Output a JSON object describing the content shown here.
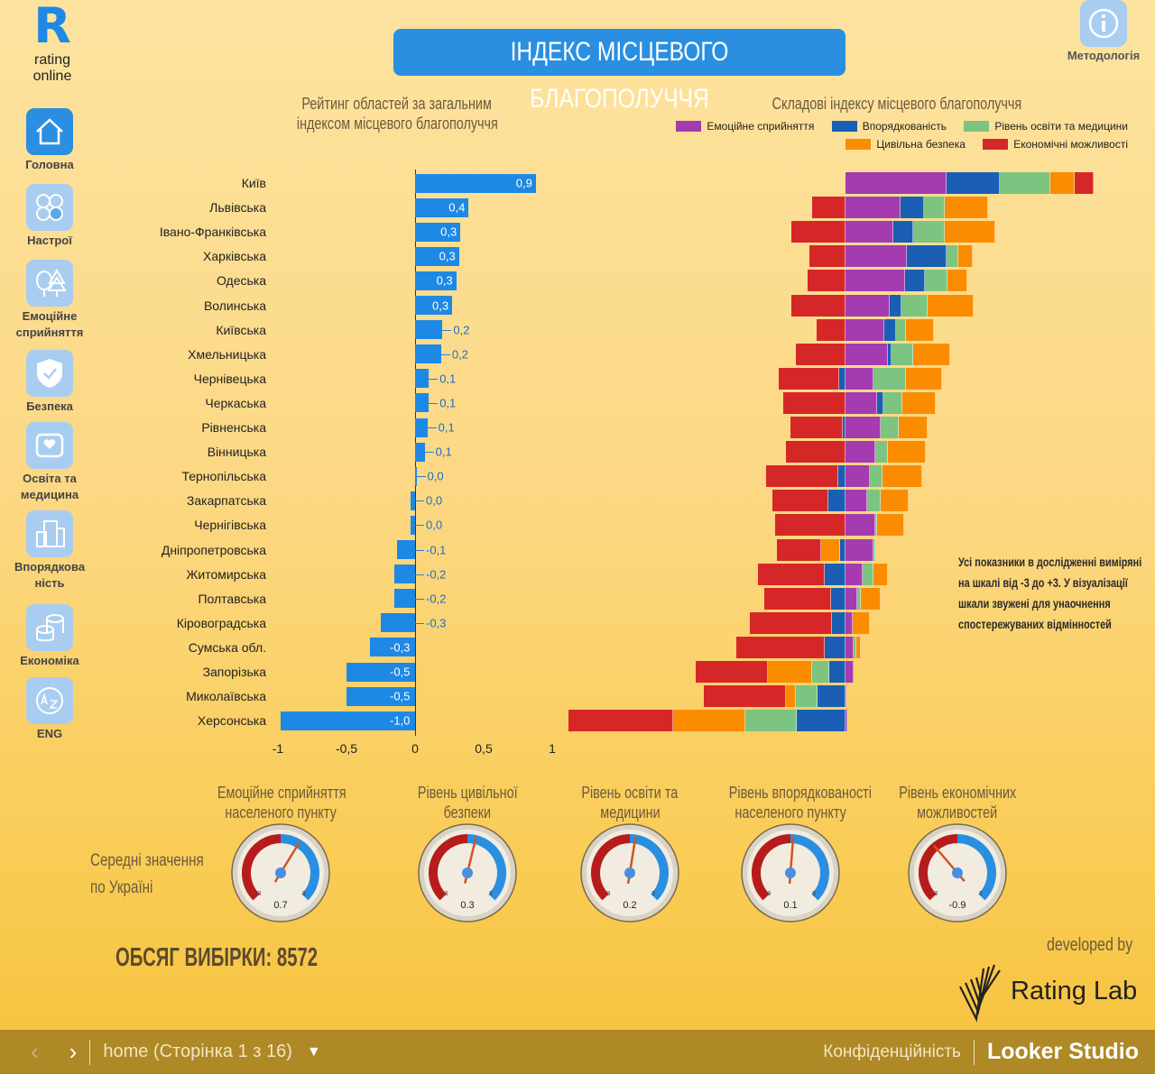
{
  "logo": {
    "mark": "R",
    "line1": "rating",
    "line2": "online"
  },
  "header": {
    "title": "ІНДЕКС МІСЦЕВОГО БЛАГОПОЛУЧЧЯ",
    "methodology_label": "Методологія"
  },
  "sidebar": {
    "items": [
      {
        "label": "Головна",
        "icon": "home-icon",
        "active": true
      },
      {
        "label": "Настрої",
        "icon": "moods-icon"
      },
      {
        "label": "Емоційне сприйняття",
        "icon": "trees-icon"
      },
      {
        "label": "Безпека",
        "icon": "shield-icon"
      },
      {
        "label": "Освіта та медицина",
        "icon": "heart-card-icon"
      },
      {
        "label": "Впорядкова ність",
        "icon": "buildings-icon"
      },
      {
        "label": "Економіка",
        "icon": "coins-icon"
      },
      {
        "label": "ENG",
        "icon": "translate-icon"
      }
    ]
  },
  "note": "Усі показники в дослідженні виміряні на шкалі від -3 до +3. У візуалізації шкали звужені для унаочнення спостережуваних відмінностей",
  "averages_label_1": "Середні значення",
  "averages_label_2": "по Україні",
  "sample": "ОБСЯГ ВИБІРКИ: 8572",
  "developed_by": "developed by",
  "developer": "Rating Lab",
  "footer": {
    "page": "home (Сторінка 1 з 16)",
    "privacy": "Конфіденційність",
    "brand": "Looker Studio"
  },
  "colors": {
    "bar": "#1e88e5",
    "emotional": "#a43bb0",
    "order": "#1a5fb4",
    "education": "#7cc47f",
    "safety": "#fb8c00",
    "economic": "#d62728"
  },
  "chart_data": [
    {
      "type": "bar",
      "title": "Рейтинг областей за загальним індексом місцевого благополуччя",
      "title_line1": "Рейтинг областей за загальним",
      "title_line2": "індексом місцевого благополуччя",
      "orientation": "horizontal",
      "categories": [
        "Київ",
        "Львівська",
        "Івано-Франківська",
        "Харківська",
        "Одеська",
        "Волинська",
        "Київська",
        "Хмельницька",
        "Чернівецька",
        "Черкаська",
        "Рівненська",
        "Вінницька",
        "Тернопільська",
        "Закарпатська",
        "Чернігівська",
        "Дніпропетровська",
        "Житомирська",
        "Полтавська",
        "Кіровоградська",
        "Сумська обл.",
        "Запорізька",
        "Миколаївська",
        "Херсонська"
      ],
      "values": [
        0.88,
        0.39,
        0.33,
        0.32,
        0.3,
        0.27,
        0.2,
        0.19,
        0.1,
        0.1,
        0.09,
        0.07,
        0.01,
        -0.03,
        -0.03,
        -0.13,
        -0.15,
        -0.15,
        -0.25,
        -0.33,
        -0.5,
        -0.5,
        -0.98
      ],
      "labels": [
        "0,9",
        "0,4",
        "0,3",
        "0,3",
        "0,3",
        "0,3",
        "0,2",
        "0,2",
        "0,1",
        "0,1",
        "0,1",
        "0,1",
        "0,0",
        "0,0",
        "0,0",
        "-0,1",
        "-0,2",
        "-0,2",
        "-0,3",
        "-0,3",
        "-0,5",
        "-0,5",
        "-1,0"
      ],
      "xlim": [
        -1,
        1
      ],
      "xticks": [
        "-1",
        "-0,5",
        "0",
        "0,5",
        "1"
      ],
      "xtick_values": [
        -1,
        -0.5,
        0,
        0.5,
        1
      ]
    },
    {
      "type": "bar",
      "stacked": true,
      "orientation": "horizontal",
      "title": "Складові індексу місцевого благополуччя",
      "legend_position": "top",
      "categories": [
        "Київ",
        "Львівська",
        "Івано-Франківська",
        "Харківська",
        "Одеська",
        "Волинська",
        "Київська",
        "Хмельницька",
        "Чернівецька",
        "Черкаська",
        "Рівненська",
        "Вінницька",
        "Тернопільська",
        "Закарпатська",
        "Чернігівська",
        "Дніпропетровська",
        "Житомирська",
        "Полтавська",
        "Кіровоградська",
        "Сумська обл.",
        "Запорізька",
        "Миколаївська",
        "Херсонська"
      ],
      "series": [
        {
          "name": "Емоційне сприйняття",
          "key": "emotional",
          "values": [
            1.12,
            0.61,
            0.53,
            0.68,
            0.66,
            0.49,
            0.43,
            0.47,
            0.31,
            0.35,
            0.39,
            0.33,
            0.27,
            0.24,
            0.33,
            0.31,
            0.19,
            0.13,
            0.08,
            0.09,
            0.09,
            0.01,
            0.02
          ]
        },
        {
          "name": "Впорядкованість",
          "key": "order",
          "values": [
            0.59,
            0.26,
            0.22,
            0.44,
            0.22,
            0.13,
            0.13,
            0.04,
            -0.07,
            0.07,
            -0.03,
            0,
            -0.08,
            -0.19,
            0,
            -0.06,
            -0.23,
            -0.16,
            -0.15,
            -0.23,
            -0.18,
            -0.31,
            -0.54
          ]
        },
        {
          "name": "Рівень освіти та медицини",
          "key": "education",
          "values": [
            0.56,
            0.23,
            0.35,
            0.13,
            0.25,
            0.29,
            0.11,
            0.24,
            0.36,
            0.21,
            0.2,
            0.14,
            0.14,
            0.15,
            0.02,
            0.02,
            0.12,
            0.04,
            0,
            0.03,
            -0.19,
            -0.24,
            -0.57
          ]
        },
        {
          "name": "Цивільна безпека",
          "key": "safety",
          "values": [
            0.27,
            0.48,
            0.56,
            0.16,
            0.22,
            0.51,
            0.31,
            0.41,
            0.4,
            0.37,
            0.32,
            0.42,
            0.44,
            0.31,
            0.3,
            -0.21,
            0.16,
            0.22,
            0.19,
            0.05,
            -0.49,
            -0.11,
            -0.8
          ]
        },
        {
          "name": "Економічні можливості",
          "key": "economic",
          "values": [
            0.21,
            -0.37,
            -0.6,
            -0.4,
            -0.42,
            -0.6,
            -0.32,
            -0.55,
            -0.67,
            -0.69,
            -0.58,
            -0.66,
            -0.8,
            -0.62,
            -0.78,
            -0.49,
            -0.74,
            -0.74,
            -0.91,
            -0.98,
            -0.8,
            -0.91,
            -1.16
          ]
        }
      ]
    },
    {
      "type": "gauge",
      "range": [
        -3,
        3
      ],
      "min_label": "-3",
      "max_label": "3",
      "gauges": [
        {
          "title1": "Емоційне сприйняття",
          "title2": "населеного пункту",
          "value": 0.7,
          "label": "0.7"
        },
        {
          "title1": "Рівень цивільної",
          "title2": "безпеки",
          "value": 0.3,
          "label": "0.3"
        },
        {
          "title1": "Рівень освіти та",
          "title2": "медицини",
          "value": 0.2,
          "label": "0.2"
        },
        {
          "title1": "Рівень впорядкованості",
          "title2": "населеного пункту",
          "value": 0.1,
          "label": "0.1"
        },
        {
          "title1": "Рівень економічних",
          "title2": "можливостей",
          "value": -0.9,
          "label": "-0.9"
        }
      ]
    }
  ]
}
